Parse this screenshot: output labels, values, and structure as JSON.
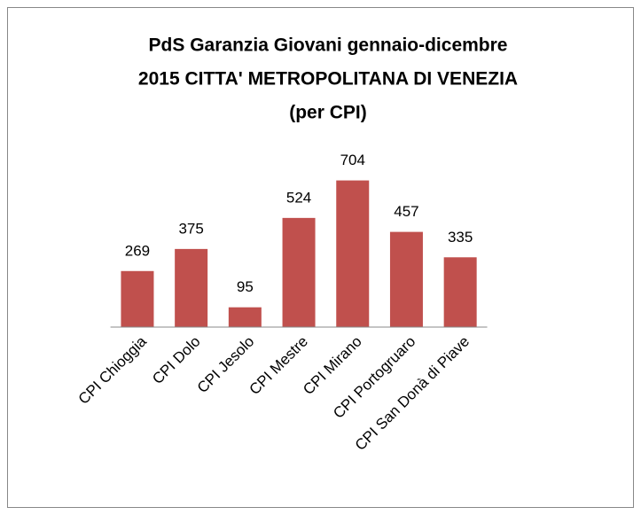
{
  "chart_data": {
    "type": "bar",
    "title": [
      "PdS Garanzia Giovani gennaio-dicembre",
      "2015 CITTA' METROPOLITANA DI VENEZIA",
      "(per CPI)"
    ],
    "categories": [
      "CPI Chioggia",
      "CPI Dolo",
      "CPI Jesolo",
      "CPI Mestre",
      "CPI Mirano",
      "CPI Portogruaro",
      "CPI San Donà di Piave"
    ],
    "values": [
      269,
      375,
      95,
      524,
      704,
      457,
      335
    ],
    "color": "#c0504d",
    "ylim": [
      0,
      800
    ]
  }
}
